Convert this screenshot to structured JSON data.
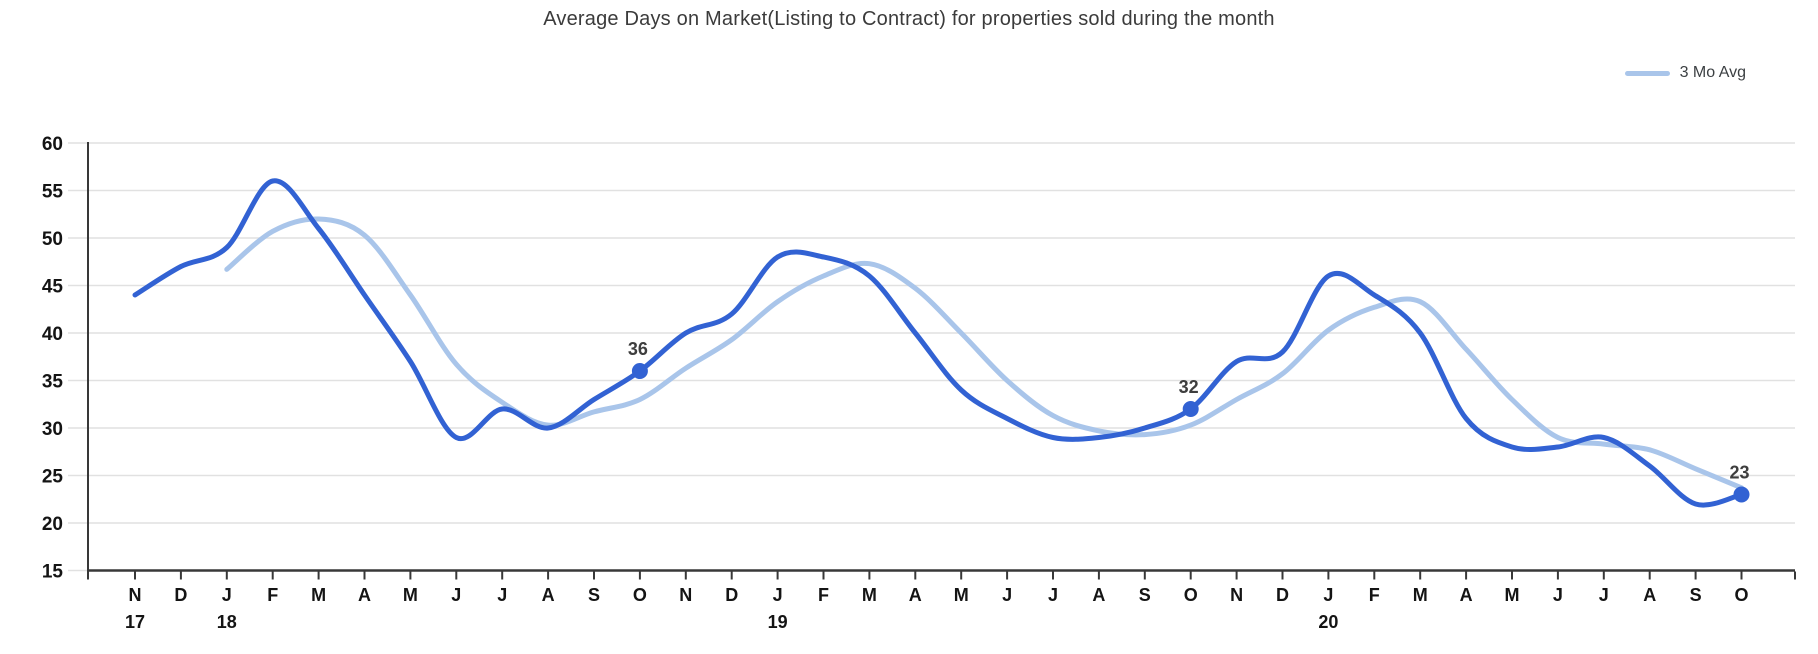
{
  "title": "Average Days on Market(Listing to Contract) for properties sold during the month",
  "legend": {
    "items": [
      {
        "label": "3 Mo Avg",
        "color": "#a9c5ea"
      }
    ]
  },
  "chart_data": {
    "type": "line",
    "title": "Average Days on Market(Listing to Contract) for properties sold during the month",
    "curve": "smooth",
    "grid": {
      "on": true,
      "color": "#e1e1e1"
    },
    "axis_color": "#383838",
    "label_color": "#141414",
    "annotation_color": "#3e3e3e",
    "legend_position": "top-right",
    "y_axis": {
      "min": 15,
      "max": 60,
      "step": 5,
      "ticks": [
        60,
        55,
        50,
        45,
        40,
        35,
        30,
        25,
        20,
        15
      ]
    },
    "x_axis": {
      "month_labels": [
        "N",
        "D",
        "J",
        "F",
        "M",
        "A",
        "M",
        "J",
        "J",
        "A",
        "S",
        "O",
        "N",
        "D",
        "J",
        "F",
        "M",
        "A",
        "M",
        "J",
        "J",
        "A",
        "S",
        "O",
        "N",
        "D",
        "J",
        "F",
        "M",
        "A",
        "M",
        "J",
        "J",
        "A",
        "S",
        "O"
      ],
      "year_marks": [
        {
          "index": 0,
          "label": "17"
        },
        {
          "index": 2,
          "label": "18"
        },
        {
          "index": 14,
          "label": "19"
        },
        {
          "index": 26,
          "label": "20"
        }
      ]
    },
    "series": [
      {
        "id": "monthly",
        "color": "#3262d3",
        "line_width": 5,
        "values": [
          44,
          47,
          49,
          56,
          51,
          44,
          37,
          29,
          32,
          30,
          33,
          36,
          40,
          42,
          48,
          48,
          46,
          40,
          34,
          31,
          29,
          29,
          30,
          32,
          37,
          38,
          46,
          44,
          40,
          31,
          28,
          28,
          29,
          26,
          22,
          23
        ]
      },
      {
        "id": "three_month_avg",
        "legend_label": "3 Mo Avg",
        "color": "#a9c5ea",
        "line_width": 5,
        "values": [
          null,
          null,
          46.7,
          50.7,
          52,
          50.3,
          44,
          36.7,
          32.7,
          30.3,
          31.7,
          33,
          36.3,
          39.3,
          43.3,
          46,
          47.3,
          44.7,
          40,
          35,
          31.3,
          29.7,
          29.3,
          30.3,
          33,
          35.7,
          40.3,
          42.7,
          43.3,
          38.3,
          33,
          29,
          28.3,
          27.7,
          25.7,
          23.7
        ]
      }
    ],
    "point_labels": [
      {
        "series": "monthly",
        "index": 11,
        "text": "36"
      },
      {
        "series": "monthly",
        "index": 23,
        "text": "32"
      },
      {
        "series": "monthly",
        "index": 35,
        "text": "23"
      }
    ]
  }
}
